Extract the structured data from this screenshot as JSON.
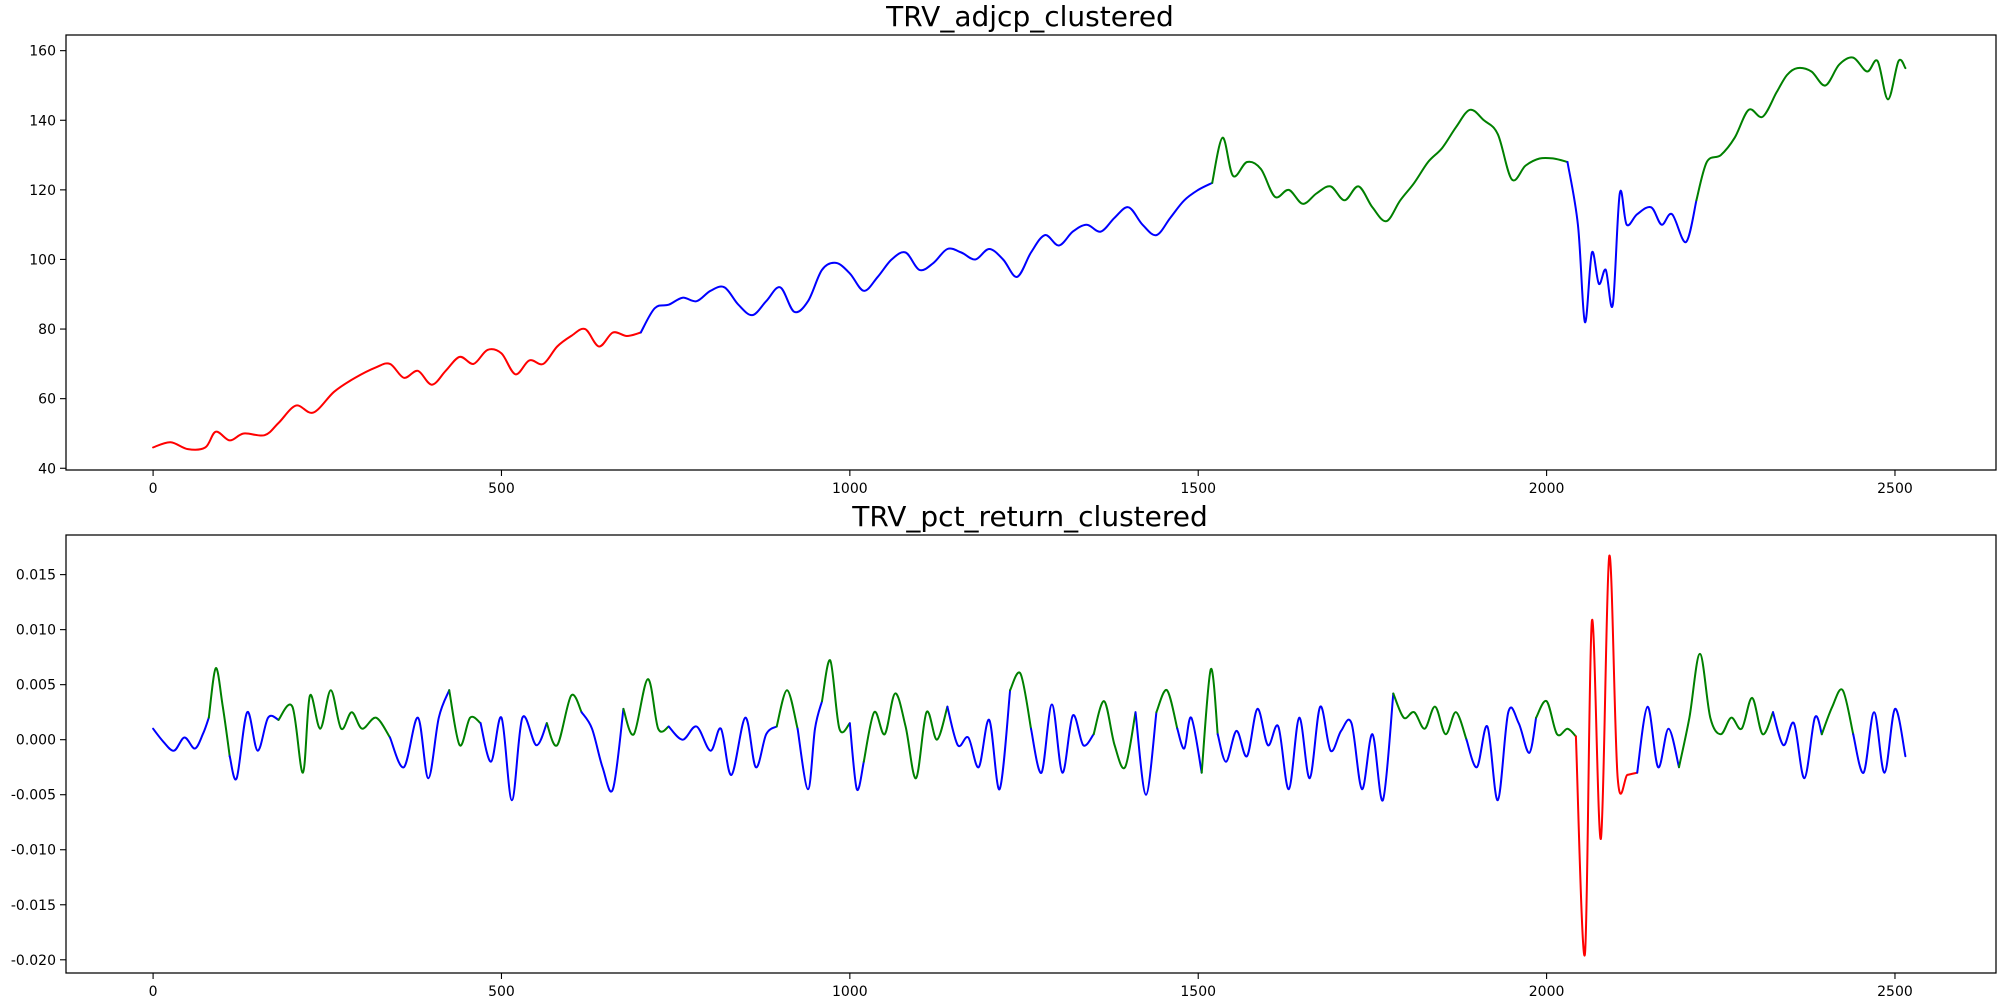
{
  "colors": {
    "cluster_red": "#ff0000",
    "cluster_blue": "#0000ff",
    "cluster_green": "#008000"
  },
  "chart_data": [
    {
      "type": "line",
      "title": "TRV_adjcp_clustered",
      "xlabel": "",
      "ylabel": "",
      "xlim": [
        -125,
        2645
      ],
      "ylim": [
        39.5,
        164.5
      ],
      "xticks": [
        0,
        500,
        1000,
        1500,
        2000,
        2500
      ],
      "xtick_labels": [
        "0",
        "500",
        "1000",
        "1500",
        "2000",
        "2500"
      ],
      "yticks": [
        40,
        60,
        80,
        100,
        120,
        140,
        160
      ],
      "ytick_labels": [
        "40",
        "60",
        "80",
        "100",
        "120",
        "140",
        "160"
      ],
      "grid": false,
      "legend": "none",
      "segments": [
        {
          "color": "red",
          "x": [
            0,
            25,
            50,
            75,
            90,
            110,
            130,
            160,
            180,
            205,
            230,
            260,
            290,
            320,
            340,
            360,
            380,
            400,
            420,
            440,
            460,
            480,
            500,
            520,
            540,
            560,
            580,
            600,
            620,
            640,
            660,
            680,
            700
          ],
          "y": [
            46,
            47.5,
            45.5,
            46,
            50.5,
            48,
            50,
            49.5,
            53,
            58,
            56,
            62,
            66,
            69,
            70,
            66,
            68,
            64,
            68,
            72,
            70,
            74,
            73,
            67,
            71,
            70,
            75,
            78,
            80,
            75,
            79,
            78,
            79
          ]
        },
        {
          "color": "blue",
          "x": [
            700,
            720,
            740,
            760,
            780,
            800,
            820,
            840,
            860,
            880,
            900,
            920,
            940,
            960,
            980,
            1000,
            1020,
            1040,
            1060,
            1080,
            1100,
            1120,
            1140,
            1160,
            1180,
            1200,
            1220,
            1240,
            1260,
            1280,
            1300,
            1320,
            1340,
            1360,
            1380,
            1400,
            1420,
            1440,
            1460,
            1480,
            1500,
            1520
          ],
          "y": [
            79,
            86,
            87,
            89,
            88,
            91,
            92,
            87,
            84,
            88,
            92,
            85,
            88,
            97,
            99,
            96,
            91,
            95,
            100,
            102,
            97,
            99,
            103,
            102,
            100,
            103,
            100,
            95,
            102,
            107,
            104,
            108,
            110,
            108,
            112,
            115,
            110,
            107,
            112,
            117,
            120,
            122
          ]
        },
        {
          "color": "green",
          "x": [
            1520,
            1535,
            1550,
            1570,
            1590,
            1610,
            1630,
            1650,
            1670,
            1690,
            1710,
            1730,
            1750,
            1770,
            1790,
            1810,
            1830,
            1850,
            1870,
            1890,
            1910,
            1930,
            1950,
            1970,
            1990,
            2010,
            2030
          ],
          "y": [
            122,
            135,
            124,
            128,
            126,
            118,
            120,
            116,
            119,
            121,
            117,
            121,
            115,
            111,
            117,
            122,
            128,
            132,
            138,
            143,
            140,
            136,
            123,
            127,
            129,
            129,
            128
          ]
        },
        {
          "color": "blue",
          "x": [
            2030,
            2045,
            2055,
            2065,
            2075,
            2085,
            2095,
            2105,
            2115,
            2130,
            2150,
            2165,
            2180,
            2200,
            2215
          ],
          "y": [
            128,
            110,
            82,
            102,
            93,
            97,
            87,
            119,
            110,
            113,
            115,
            110,
            113,
            105,
            117
          ]
        },
        {
          "color": "green",
          "x": [
            2215,
            2230,
            2250,
            2270,
            2290,
            2310,
            2330,
            2345,
            2360,
            2380,
            2400,
            2420,
            2440,
            2460,
            2475,
            2490,
            2505,
            2515
          ],
          "y": [
            117,
            128,
            130,
            135,
            143,
            141,
            148,
            153,
            155,
            154,
            150,
            156,
            158,
            154,
            157,
            146,
            157,
            155
          ]
        }
      ]
    },
    {
      "type": "line",
      "title": "TRV_pct_return_clustered",
      "xlabel": "",
      "ylabel": "",
      "xlim": [
        -125,
        2645
      ],
      "ylim": [
        -0.0212,
        0.0186
      ],
      "xticks": [
        0,
        500,
        1000,
        1500,
        2000,
        2500
      ],
      "xtick_labels": [
        "0",
        "500",
        "1000",
        "1500",
        "2000",
        "2500"
      ],
      "yticks": [
        -0.02,
        -0.015,
        -0.01,
        -0.005,
        0.0,
        0.005,
        0.01,
        0.015
      ],
      "ytick_labels": [
        "-0.020",
        "-0.015",
        "-0.010",
        "-0.005",
        "0.000",
        "0.005",
        "0.010",
        "0.015"
      ],
      "grid": false,
      "legend": "none",
      "segments": [
        {
          "color": "blue",
          "x": [
            0,
            15,
            30,
            45,
            60,
            72,
            80
          ],
          "y": [
            0.001,
            -0.0002,
            -0.001,
            0.0002,
            -0.0008,
            0.0006,
            0.002
          ]
        },
        {
          "color": "green",
          "x": [
            80,
            90,
            100,
            110
          ],
          "y": [
            0.002,
            0.0065,
            0.003,
            -0.0015
          ]
        },
        {
          "color": "blue",
          "x": [
            110,
            120,
            135,
            150,
            165,
            180
          ],
          "y": [
            -0.0015,
            -0.0035,
            0.0025,
            -0.001,
            0.002,
            0.0018
          ]
        },
        {
          "color": "green",
          "x": [
            180,
            200,
            215,
            225,
            240,
            255,
            270,
            285,
            300,
            320,
            340
          ],
          "y": [
            0.0018,
            0.003,
            -0.003,
            0.004,
            0.001,
            0.0045,
            0.001,
            0.0025,
            0.001,
            0.002,
            0.0002
          ]
        },
        {
          "color": "blue",
          "x": [
            340,
            360,
            380,
            395,
            410,
            425
          ],
          "y": [
            0.0002,
            -0.0025,
            0.002,
            -0.0035,
            0.002,
            0.0045
          ]
        },
        {
          "color": "green",
          "x": [
            425,
            440,
            455,
            470
          ],
          "y": [
            0.0045,
            -0.0005,
            0.002,
            0.0015
          ]
        },
        {
          "color": "blue",
          "x": [
            470,
            485,
            500,
            515,
            530,
            550,
            565
          ],
          "y": [
            0.0015,
            -0.002,
            0.002,
            -0.0055,
            0.002,
            -0.0005,
            0.0015
          ]
        },
        {
          "color": "green",
          "x": [
            565,
            580,
            600,
            615
          ],
          "y": [
            0.0015,
            -0.0005,
            0.004,
            0.0025
          ]
        },
        {
          "color": "blue",
          "x": [
            615,
            630,
            645,
            660,
            675
          ],
          "y": [
            0.0025,
            0.001,
            -0.0025,
            -0.0045,
            0.0028
          ]
        },
        {
          "color": "green",
          "x": [
            675,
            690,
            710,
            725,
            740
          ],
          "y": [
            0.0028,
            0.0005,
            0.0055,
            0.001,
            0.0012
          ]
        },
        {
          "color": "blue",
          "x": [
            740,
            760,
            780,
            800,
            815,
            830,
            850,
            865,
            880,
            895
          ],
          "y": [
            0.0012,
            0.0,
            0.0012,
            -0.001,
            0.001,
            -0.0032,
            0.002,
            -0.0025,
            0.0005,
            0.0012
          ]
        },
        {
          "color": "green",
          "x": [
            895,
            910,
            925
          ],
          "y": [
            0.0012,
            0.0045,
            0.001
          ]
        },
        {
          "color": "blue",
          "x": [
            925,
            940,
            950,
            960
          ],
          "y": [
            0.001,
            -0.0045,
            0.001,
            0.0035
          ]
        },
        {
          "color": "green",
          "x": [
            960,
            972,
            985,
            1000
          ],
          "y": [
            0.0035,
            0.0072,
            0.001,
            0.0015
          ]
        },
        {
          "color": "blue",
          "x": [
            1000,
            1010,
            1020
          ],
          "y": [
            0.0015,
            -0.0045,
            -0.002
          ]
        },
        {
          "color": "green",
          "x": [
            1020,
            1035,
            1050,
            1065,
            1080,
            1095,
            1110,
            1125,
            1140
          ],
          "y": [
            -0.002,
            0.0025,
            0.0005,
            0.0042,
            0.0012,
            -0.0035,
            0.0025,
            0.0,
            0.003
          ]
        },
        {
          "color": "blue",
          "x": [
            1140,
            1155,
            1170,
            1185,
            1200,
            1215,
            1230
          ],
          "y": [
            0.003,
            -0.0005,
            0.0002,
            -0.0025,
            0.0018,
            -0.0045,
            0.0045
          ]
        },
        {
          "color": "green",
          "x": [
            1230,
            1245,
            1260
          ],
          "y": [
            0.0045,
            0.006,
            0.001
          ]
        },
        {
          "color": "blue",
          "x": [
            1260,
            1275,
            1290,
            1305,
            1320,
            1335,
            1350
          ],
          "y": [
            0.001,
            -0.003,
            0.0032,
            -0.003,
            0.0022,
            -0.0005,
            0.0005
          ]
        },
        {
          "color": "green",
          "x": [
            1350,
            1365,
            1380,
            1395,
            1410
          ],
          "y": [
            0.0005,
            0.0035,
            -0.0005,
            -0.0025,
            0.0025
          ]
        },
        {
          "color": "blue",
          "x": [
            1410,
            1425,
            1440
          ],
          "y": [
            0.0025,
            -0.005,
            0.0025
          ]
        },
        {
          "color": "green",
          "x": [
            1440,
            1455,
            1470
          ],
          "y": [
            0.0025,
            0.0045,
            0.001
          ]
        },
        {
          "color": "blue",
          "x": [
            1470,
            1480,
            1490,
            1505
          ],
          "y": [
            0.001,
            -0.0008,
            0.002,
            -0.003
          ]
        },
        {
          "color": "green",
          "x": [
            1505,
            1518,
            1528
          ],
          "y": [
            -0.003,
            0.0064,
            0.0005
          ]
        },
        {
          "color": "blue",
          "x": [
            1528,
            1540,
            1555,
            1570,
            1585,
            1600,
            1615,
            1630,
            1645,
            1660,
            1675,
            1690,
            1705,
            1720,
            1735,
            1750,
            1765,
            1780
          ],
          "y": [
            0.0005,
            -0.002,
            0.0008,
            -0.0015,
            0.0028,
            -0.0005,
            0.0012,
            -0.0045,
            0.002,
            -0.0035,
            0.003,
            -0.001,
            0.0008,
            0.0015,
            -0.0045,
            0.0005,
            -0.0055,
            0.0042
          ]
        },
        {
          "color": "green",
          "x": [
            1780,
            1795,
            1810,
            1825,
            1840,
            1855,
            1870,
            1885
          ],
          "y": [
            0.0042,
            0.002,
            0.0025,
            0.001,
            0.003,
            0.0005,
            0.0025,
            0.0
          ]
        },
        {
          "color": "blue",
          "x": [
            1885,
            1900,
            1915,
            1930,
            1945,
            1960,
            1975,
            1985
          ],
          "y": [
            0.0,
            -0.0025,
            0.0012,
            -0.0055,
            0.0025,
            0.0015,
            -0.0012,
            0.002
          ]
        },
        {
          "color": "green",
          "x": [
            1985,
            2000,
            2015,
            2030,
            2042
          ],
          "y": [
            0.002,
            0.0035,
            0.0005,
            0.001,
            0.0003
          ]
        },
        {
          "color": "red",
          "x": [
            2042,
            2055,
            2065,
            2078,
            2090,
            2102,
            2116,
            2130
          ],
          "y": [
            0.0003,
            -0.0195,
            0.0108,
            -0.009,
            0.0167,
            -0.0035,
            -0.0032,
            -0.003
          ]
        },
        {
          "color": "blue",
          "x": [
            2130,
            2145,
            2160,
            2175,
            2190
          ],
          "y": [
            -0.003,
            0.003,
            -0.0025,
            0.001,
            -0.0025
          ]
        },
        {
          "color": "green",
          "x": [
            2190,
            2205,
            2220,
            2235,
            2250,
            2265,
            2280,
            2295,
            2310,
            2325
          ],
          "y": [
            -0.0025,
            0.002,
            0.0078,
            0.002,
            0.0005,
            0.002,
            0.001,
            0.0038,
            0.0005,
            0.0025
          ]
        },
        {
          "color": "blue",
          "x": [
            2325,
            2340,
            2355,
            2370,
            2385,
            2395
          ],
          "y": [
            0.0025,
            -0.0005,
            0.0015,
            -0.0035,
            0.002,
            0.0005
          ]
        },
        {
          "color": "green",
          "x": [
            2395,
            2410,
            2425,
            2440
          ],
          "y": [
            0.0005,
            0.003,
            0.0045,
            0.0005
          ]
        },
        {
          "color": "blue",
          "x": [
            2440,
            2455,
            2470,
            2485,
            2500,
            2515
          ],
          "y": [
            0.0005,
            -0.003,
            0.0025,
            -0.003,
            0.0028,
            -0.0015
          ]
        }
      ]
    }
  ]
}
